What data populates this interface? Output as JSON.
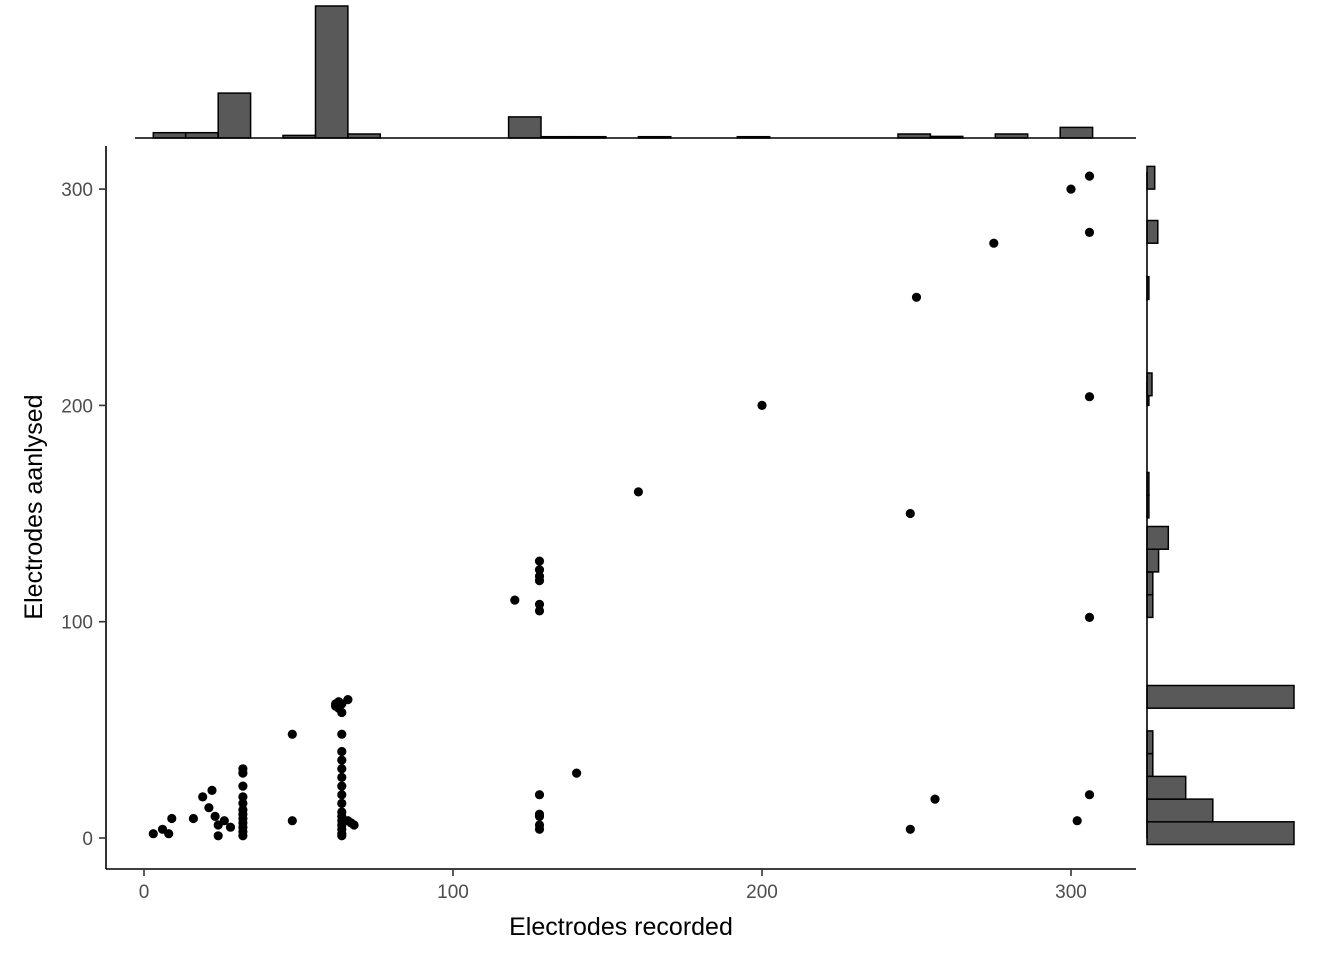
{
  "chart_data": {
    "type": "scatter",
    "title": "",
    "xlabel": "Electrodes recorded",
    "ylabel": "Electrodes aanlysed",
    "xlim": [
      -12,
      320
    ],
    "ylim": [
      -15,
      320
    ],
    "x_ticks": [
      0,
      100,
      200,
      300
    ],
    "y_ticks": [
      0,
      100,
      200,
      300
    ],
    "x_tick_labels": [
      "0",
      "100",
      "200",
      "300"
    ],
    "y_tick_labels": [
      "0",
      "100",
      "200",
      "300"
    ],
    "grid": false,
    "legend": "none",
    "colors": {
      "points": "#000000",
      "bars": "#595959",
      "bar_border": "#000000"
    },
    "points": [
      [
        3,
        2
      ],
      [
        6,
        4
      ],
      [
        8,
        2
      ],
      [
        9,
        9
      ],
      [
        16,
        9
      ],
      [
        19,
        19
      ],
      [
        21,
        14
      ],
      [
        22,
        22
      ],
      [
        23,
        10
      ],
      [
        24,
        6
      ],
      [
        24,
        1
      ],
      [
        26,
        8
      ],
      [
        28,
        5
      ],
      [
        32,
        1
      ],
      [
        32,
        3
      ],
      [
        32,
        5
      ],
      [
        32,
        7
      ],
      [
        32,
        9
      ],
      [
        32,
        11
      ],
      [
        32,
        13
      ],
      [
        32,
        16
      ],
      [
        32,
        19
      ],
      [
        32,
        24
      ],
      [
        32,
        30
      ],
      [
        32,
        32
      ],
      [
        48,
        48
      ],
      [
        48,
        8
      ],
      [
        62,
        62
      ],
      [
        62,
        61
      ],
      [
        63,
        60
      ],
      [
        63,
        63
      ],
      [
        64,
        58
      ],
      [
        64,
        62
      ],
      [
        66,
        64
      ],
      [
        64,
        1
      ],
      [
        64,
        2
      ],
      [
        64,
        4
      ],
      [
        64,
        6
      ],
      [
        64,
        8
      ],
      [
        64,
        10
      ],
      [
        64,
        12
      ],
      [
        64,
        16
      ],
      [
        64,
        20
      ],
      [
        64,
        24
      ],
      [
        64,
        28
      ],
      [
        64,
        32
      ],
      [
        64,
        36
      ],
      [
        64,
        40
      ],
      [
        64,
        48
      ],
      [
        66,
        8
      ],
      [
        67,
        7
      ],
      [
        68,
        6
      ],
      [
        120,
        110
      ],
      [
        128,
        128
      ],
      [
        128,
        124
      ],
      [
        128,
        121
      ],
      [
        128,
        119
      ],
      [
        128,
        108
      ],
      [
        128,
        105
      ],
      [
        128,
        20
      ],
      [
        128,
        11
      ],
      [
        128,
        10
      ],
      [
        128,
        6
      ],
      [
        128,
        4
      ],
      [
        140,
        30
      ],
      [
        160,
        160
      ],
      [
        200,
        200
      ],
      [
        248,
        150
      ],
      [
        248,
        4
      ],
      [
        250,
        250
      ],
      [
        256,
        18
      ],
      [
        275,
        275
      ],
      [
        300,
        300
      ],
      [
        302,
        8
      ],
      [
        306,
        306
      ],
      [
        306,
        280
      ],
      [
        306,
        204
      ],
      [
        306,
        102
      ],
      [
        306,
        20
      ]
    ],
    "x_histogram": {
      "bin_width": 10.5,
      "bins": [
        {
          "x0": 3,
          "count": 2
        },
        {
          "x0": 13.5,
          "count": 2
        },
        {
          "x0": 24,
          "count": 17
        },
        {
          "x0": 45,
          "count": 1
        },
        {
          "x0": 55.5,
          "count": 50
        },
        {
          "x0": 66,
          "count": 1.5
        },
        {
          "x0": 118,
          "count": 8
        },
        {
          "x0": 128.5,
          "count": 0.5
        },
        {
          "x0": 139,
          "count": 0.5
        },
        {
          "x0": 160,
          "count": 0.5
        },
        {
          "x0": 192,
          "count": 0.5
        },
        {
          "x0": 244,
          "count": 1.5
        },
        {
          "x0": 254.5,
          "count": 0.6
        },
        {
          "x0": 275.5,
          "count": 1.5
        },
        {
          "x0": 296.5,
          "count": 4
        }
      ],
      "ymax": 50
    },
    "y_histogram": {
      "bin_width": 10.5,
      "bins": [
        {
          "y0": -3,
          "count": 38
        },
        {
          "y0": 7.5,
          "count": 17
        },
        {
          "y0": 18,
          "count": 10
        },
        {
          "y0": 28.5,
          "count": 1.5
        },
        {
          "y0": 39,
          "count": 1.5
        },
        {
          "y0": 60,
          "count": 38
        },
        {
          "y0": 102,
          "count": 1.5
        },
        {
          "y0": 112.5,
          "count": 1.5
        },
        {
          "y0": 123,
          "count": 3
        },
        {
          "y0": 133.5,
          "count": 5.5
        },
        {
          "y0": 148,
          "count": 0.5
        },
        {
          "y0": 158.5,
          "count": 0.5
        },
        {
          "y0": 200,
          "count": 0.5
        },
        {
          "y0": 204.5,
          "count": 1.3
        },
        {
          "y0": 249,
          "count": 0.5
        },
        {
          "y0": 275,
          "count": 2.8
        },
        {
          "y0": 300,
          "count": 2
        }
      ],
      "xmax": 38
    }
  }
}
